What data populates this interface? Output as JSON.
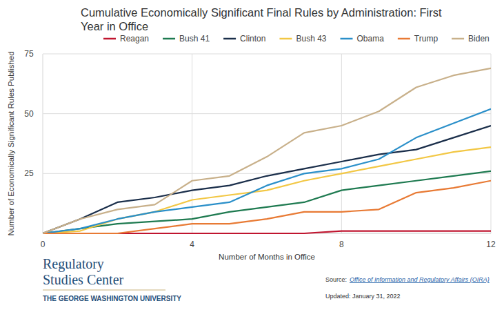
{
  "chart_data": {
    "type": "line",
    "title": "Cumulative Economically Significant Final Rules by Administration: First Year in Office",
    "x_label": "Number of Months in Office",
    "y_label": "Number of Economically Significant Rules Published",
    "x": [
      0,
      1,
      2,
      3,
      4,
      5,
      6,
      7,
      8,
      9,
      10,
      11,
      12
    ],
    "xlim": [
      0,
      12
    ],
    "xticks": [
      0,
      4,
      8,
      12
    ],
    "ylim": [
      0,
      75
    ],
    "yticks": [
      25,
      50,
      75
    ],
    "grid": true,
    "legend": "top",
    "series": [
      {
        "name": "Reagan",
        "color": "#c0152f",
        "values": [
          0,
          0,
          0,
          0,
          0,
          0,
          0,
          0,
          1,
          1,
          1,
          1,
          1
        ]
      },
      {
        "name": "Bush 41",
        "color": "#1e7a50",
        "values": [
          0,
          2,
          4,
          5,
          6,
          9,
          11,
          13,
          18,
          20,
          22,
          24,
          26
        ]
      },
      {
        "name": "Clinton",
        "color": "#1a2e4a",
        "values": [
          0,
          6,
          13,
          15,
          18,
          20,
          24,
          27,
          30,
          33,
          35,
          40,
          45
        ]
      },
      {
        "name": "Bush 43",
        "color": "#f2c744",
        "values": [
          0,
          1,
          6,
          9,
          14,
          16,
          18,
          22,
          25,
          28,
          31,
          34,
          36
        ]
      },
      {
        "name": "Obama",
        "color": "#2a8fc9",
        "values": [
          0,
          2,
          6,
          9,
          11,
          13,
          20,
          25,
          27,
          31,
          40,
          46,
          52
        ]
      },
      {
        "name": "Trump",
        "color": "#e87a34",
        "values": [
          0,
          0,
          0,
          2,
          4,
          4,
          6,
          9,
          9,
          10,
          17,
          19,
          22
        ]
      },
      {
        "name": "Biden",
        "color": "#c8b08a",
        "values": [
          0,
          6,
          10,
          12,
          22,
          24,
          32,
          42,
          45,
          51,
          61,
          66,
          69
        ]
      }
    ]
  },
  "logo": {
    "lines": [
      "Regulatory",
      "Studies Center"
    ],
    "subtitle": "THE GEORGE WASHINGTON UNIVERSITY"
  },
  "footer": {
    "source_label": "Source:",
    "source": "Office of Information and Regulatory Affairs (OIRA)",
    "updated": "Updated: January 31, 2022"
  }
}
